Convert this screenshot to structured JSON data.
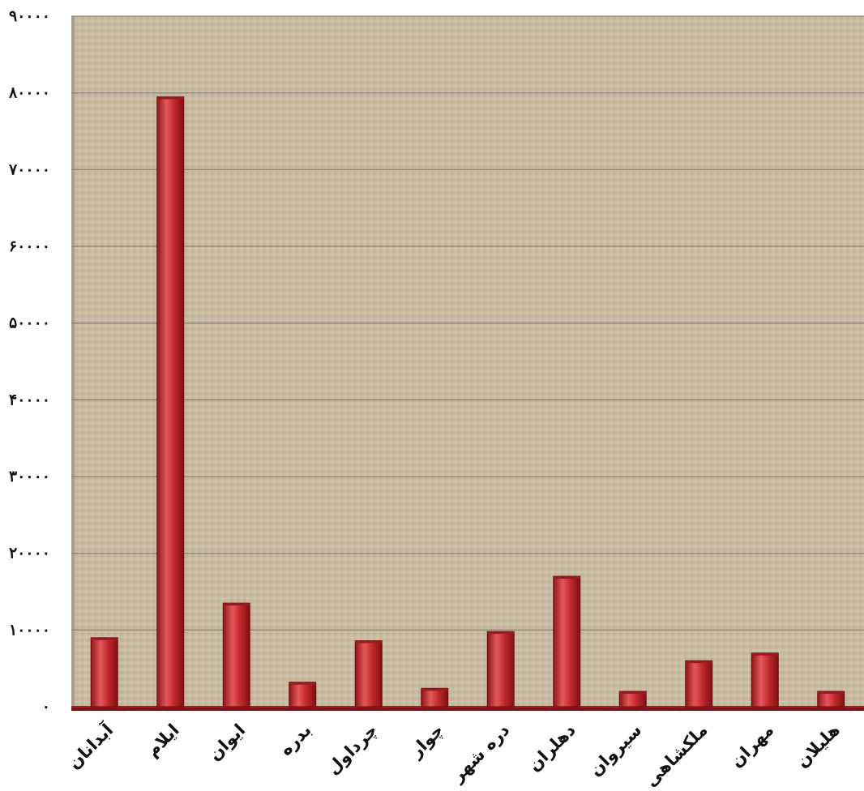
{
  "colors": {
    "plot_background": "#c9bba2",
    "bar_fill": "#c0282c",
    "bar_highlight": "#e3585b",
    "bar_shadow": "#8e1418",
    "gridline": "#8a8478"
  },
  "chart_data": {
    "type": "bar",
    "title": "",
    "xlabel": "",
    "ylabel": "",
    "categories": [
      "آبدانان",
      "ایلام",
      "ایوان",
      "بدره",
      "چرداول",
      "چوار",
      "دره شهر",
      "دهلران",
      "سیروان",
      "ملکشاهی",
      "مهران",
      "هلیلان"
    ],
    "values": [
      9000,
      79500,
      13500,
      3200,
      8600,
      2400,
      9800,
      17000,
      2000,
      6000,
      7000,
      2000
    ],
    "ylim": [
      0,
      90000
    ],
    "yticks": [
      0,
      10000,
      20000,
      30000,
      40000,
      50000,
      60000,
      70000,
      80000,
      90000
    ],
    "ytick_labels": [
      "۰",
      "۱۰۰۰۰",
      "۲۰۰۰۰",
      "۳۰۰۰۰",
      "۴۰۰۰۰",
      "۵۰۰۰۰",
      "۶۰۰۰۰",
      "۷۰۰۰۰",
      "۸۰۰۰۰",
      "۹۰۰۰۰"
    ],
    "grid": true,
    "legend": "none"
  }
}
